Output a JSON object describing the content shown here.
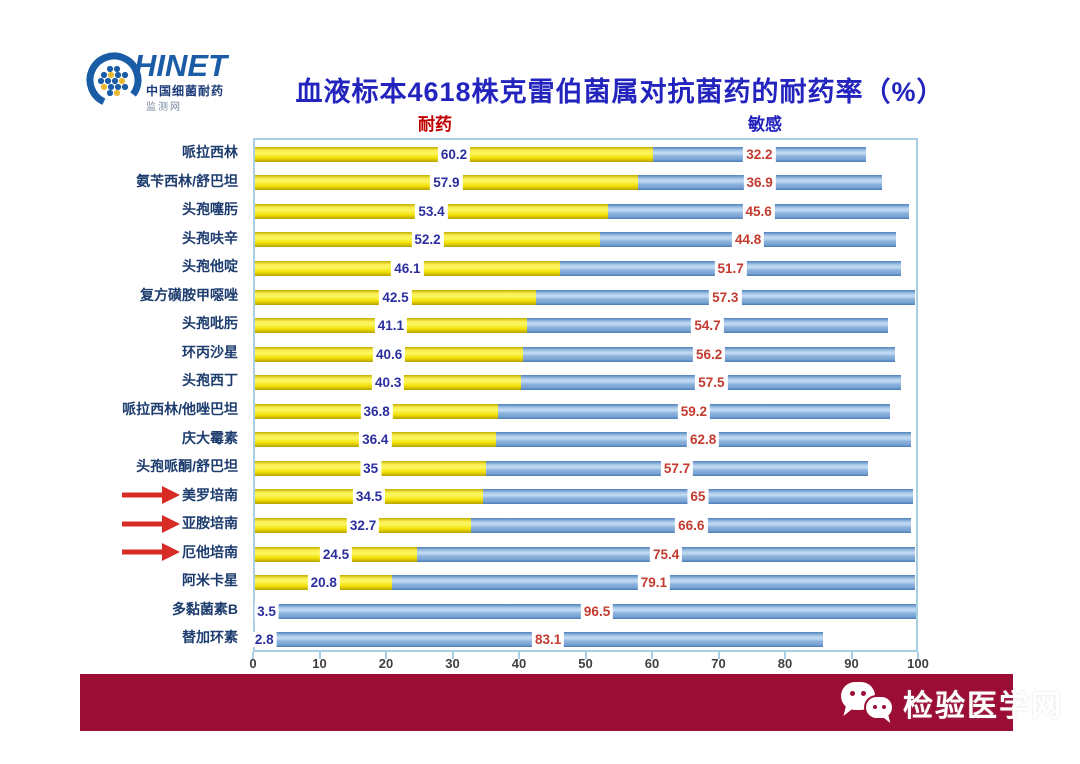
{
  "logo": {
    "brand": "HINET",
    "subtitle": "中国细菌耐药",
    "subtitle2": "监测网"
  },
  "title": "血液标本4618株克雷伯菌属对抗菌药的耐药率（%）",
  "legend": {
    "resistant": "耐药",
    "sensitive": "敏感"
  },
  "footer": {
    "brand": "检验医学网"
  },
  "chart_data": {
    "type": "bar",
    "stacked": true,
    "orientation": "horizontal",
    "xlim": [
      0,
      100
    ],
    "xticks": [
      0,
      10,
      20,
      30,
      40,
      50,
      60,
      70,
      80,
      90,
      100
    ],
    "series_names": [
      "耐药",
      "敏感"
    ],
    "colors": {
      "resistant_bar": "#f5e100",
      "sensitive_bar": "#8db4e2",
      "resistant_value_text": "#2b2f9e",
      "sensitive_value_text": "#c23b2e",
      "arrow": "#d92b26"
    },
    "rows": [
      {
        "label": "哌拉西林",
        "resistant": "60.2",
        "sensitive": "32.2"
      },
      {
        "label": "氨苄西林/舒巴坦",
        "resistant": "57.9",
        "sensitive": "36.9"
      },
      {
        "label": "头孢噻肟",
        "resistant": "53.4",
        "sensitive": "45.6"
      },
      {
        "label": "头孢呋辛",
        "resistant": "52.2",
        "sensitive": "44.8"
      },
      {
        "label": "头孢他啶",
        "resistant": "46.1",
        "sensitive": "51.7"
      },
      {
        "label": "复方磺胺甲噁唑",
        "resistant": "42.5",
        "sensitive": "57.3"
      },
      {
        "label": "头孢吡肟",
        "resistant": "41.1",
        "sensitive": "54.7"
      },
      {
        "label": "环丙沙星",
        "resistant": "40.6",
        "sensitive": "56.2"
      },
      {
        "label": "头孢西丁",
        "resistant": "40.3",
        "sensitive": "57.5"
      },
      {
        "label": "哌拉西林/他唑巴坦",
        "resistant": "36.8",
        "sensitive": "59.2"
      },
      {
        "label": "庆大霉素",
        "resistant": "36.4",
        "sensitive": "62.8"
      },
      {
        "label": "头孢哌酮/舒巴坦",
        "resistant": "35",
        "sensitive": "57.7"
      },
      {
        "label": "美罗培南",
        "resistant": "34.5",
        "sensitive": "65",
        "arrow": true
      },
      {
        "label": "亚胺培南",
        "resistant": "32.7",
        "sensitive": "66.6",
        "arrow": true
      },
      {
        "label": "厄他培南",
        "resistant": "24.5",
        "sensitive": "75.4",
        "arrow": true
      },
      {
        "label": "阿米卡星",
        "resistant": "20.8",
        "sensitive": "79.1"
      },
      {
        "label": "多黏菌素B",
        "resistant": "3.5",
        "sensitive": "96.5"
      },
      {
        "label": "替加环素",
        "resistant": "2.8",
        "sensitive": "83.1"
      }
    ]
  }
}
